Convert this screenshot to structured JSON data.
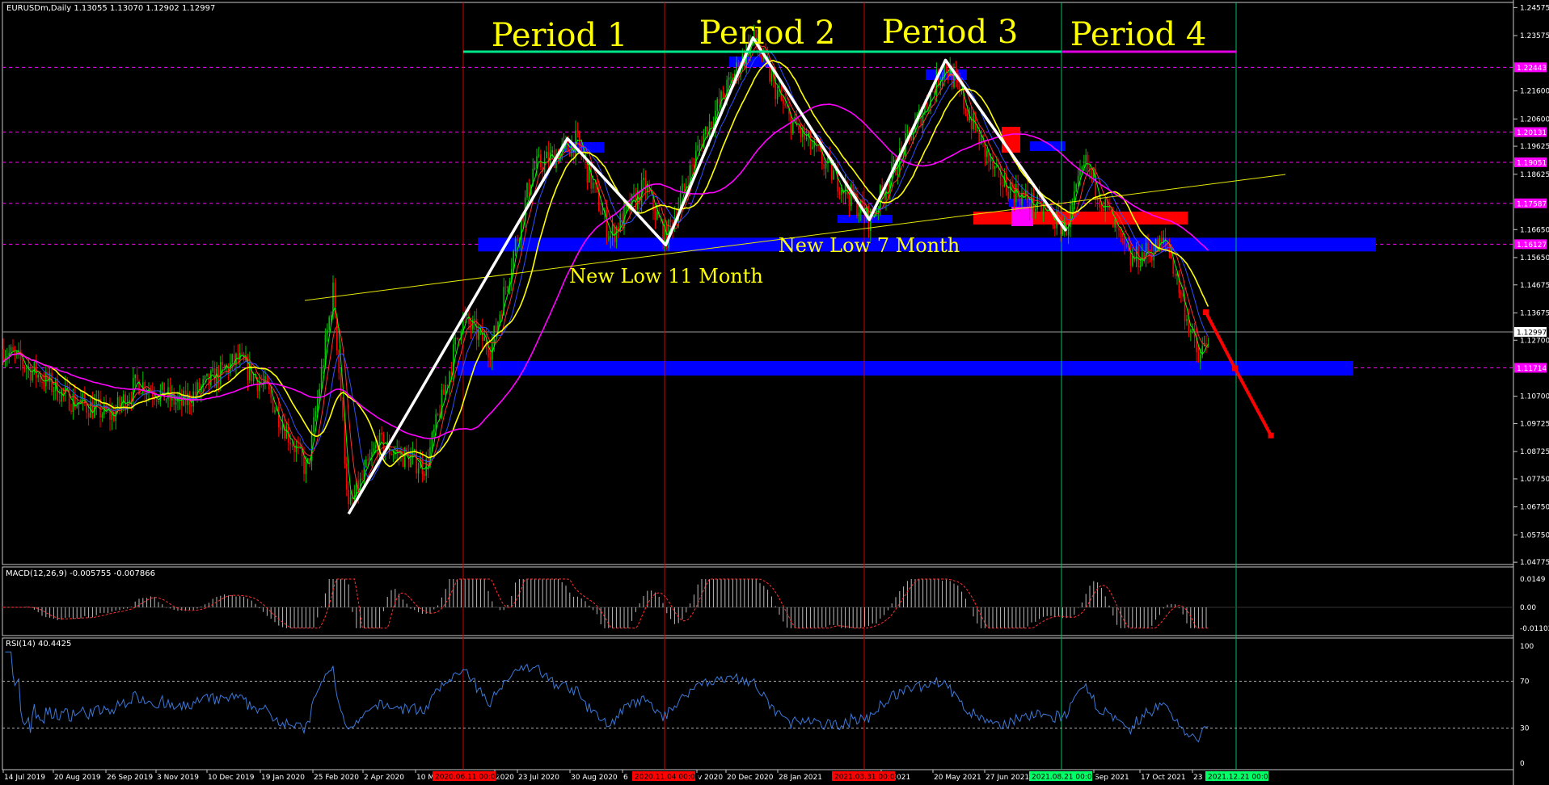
{
  "header": {
    "symbol_line": "EURUSDm,Daily  1.13055 1.13070 1.12902 1.12997",
    "macd_label": "MACD(12,26,9) -0.005755 -0.007866",
    "rsi_label": "RSI(14) 40.4425"
  },
  "annotations": {
    "periods": [
      "Period 1",
      "Period 2",
      "Period 3",
      "Period 4"
    ],
    "low_11": "New Low 11 Month",
    "low_7": "New Low 7 Month"
  },
  "axes": {
    "price_ticks": [
      "1.24575",
      "1.23575",
      "1.21600",
      "1.20600",
      "1.19625",
      "1.18625",
      "1.16650",
      "1.15650",
      "1.14675",
      "1.13675",
      "1.12700",
      "1.10700",
      "1.09725",
      "1.08725",
      "1.07750",
      "1.06750",
      "1.05750",
      "1.04775"
    ],
    "price_tags": [
      {
        "label": "1.22443",
        "kind": "magenta"
      },
      {
        "label": "1.20131",
        "kind": "magenta"
      },
      {
        "label": "1.19051",
        "kind": "magenta"
      },
      {
        "label": "1.17587",
        "kind": "magenta"
      },
      {
        "label": "1.16127",
        "kind": "magenta"
      },
      {
        "label": "1.12997",
        "kind": "white"
      },
      {
        "label": "1.11714",
        "kind": "magenta"
      }
    ],
    "macd_ticks": [
      "0.0149",
      "0.00",
      "-0.011028"
    ],
    "rsi_ticks": [
      "100",
      "70",
      "30",
      "0"
    ],
    "date_ticks": [
      "14 Jul 2019",
      "20 Aug 2019",
      "26 Sep 2019",
      "3 Nov 2019",
      "10 Dec 2019",
      "19 Jan 2020",
      "25 Feb 2020",
      "2 Apr 2020",
      "10 M",
      "2020",
      "23 Jul 2020",
      "30 Aug 2020",
      "6",
      "v 2020",
      "20 Dec 2020",
      "28 Jan 2021",
      "pr 2021",
      "20 May 2021",
      "27 Jun 2021",
      "Sep 2021",
      "17 Oct 2021",
      "23"
    ],
    "vline_tags": [
      {
        "label": "2020.06.11 00:00",
        "color": "#ff0000"
      },
      {
        "label": "2020.11.04 00:00",
        "color": "#ff0000"
      },
      {
        "label": "2021.03.31 00:00",
        "color": "#ff0000"
      },
      {
        "label": "2021.08.21 00:00",
        "color": "#00ff66"
      },
      {
        "label": "2021.12.21 00:00",
        "color": "#00ff66"
      }
    ]
  },
  "colors": {
    "background": "#000000",
    "bull_candle": "#00c000",
    "bear_candle": "#ff0000",
    "ma_fast": "#ffff00",
    "ma_slow": "#ff00ff",
    "zigzag": "#ffffff",
    "support_zone": "#0000ff",
    "resistance_zone": "#ff0000",
    "rsi_line": "#3c78d8",
    "projection": "#ff0000"
  },
  "chart_data": {
    "type": "candlestick",
    "symbol": "EURUSDm",
    "timeframe": "Daily",
    "ylim": [
      1.0475,
      1.2535
    ],
    "ohlc_last": {
      "open": 1.13055,
      "high": 1.1307,
      "low": 1.12902,
      "close": 1.12997
    },
    "price_path": [
      [
        "2019-07-14",
        1.124
      ],
      [
        "2019-09-01",
        1.106
      ],
      [
        "2019-10-01",
        1.1
      ],
      [
        "2019-10-20",
        1.112
      ],
      [
        "2019-11-20",
        1.104
      ],
      [
        "2019-12-31",
        1.12
      ],
      [
        "2020-01-20",
        1.11
      ],
      [
        "2020-02-19",
        1.08
      ],
      [
        "2020-03-09",
        1.145
      ],
      [
        "2020-03-20",
        1.066
      ],
      [
        "2020-04-10",
        1.09
      ],
      [
        "2020-05-15",
        1.082
      ],
      [
        "2020-06-10",
        1.135
      ],
      [
        "2020-07-01",
        1.124
      ],
      [
        "2020-07-31",
        1.188
      ],
      [
        "2020-09-01",
        1.198
      ],
      [
        "2020-09-25",
        1.164
      ],
      [
        "2020-10-20",
        1.182
      ],
      [
        "2020-11-04",
        1.163
      ],
      [
        "2020-12-01",
        1.2
      ],
      [
        "2021-01-06",
        1.235
      ],
      [
        "2021-02-01",
        1.206
      ],
      [
        "2021-03-31",
        1.17
      ],
      [
        "2021-05-25",
        1.226
      ],
      [
        "2021-07-01",
        1.185
      ],
      [
        "2021-08-20",
        1.167
      ],
      [
        "2021-09-03",
        1.19
      ],
      [
        "2021-10-05",
        1.155
      ],
      [
        "2021-11-01",
        1.162
      ],
      [
        "2021-11-24",
        1.119
      ],
      [
        "2021-12-01",
        1.13
      ]
    ],
    "zigzag": [
      [
        "2020-03-20",
        1.065
      ],
      [
        "2020-08-25",
        1.199
      ],
      [
        "2020-11-04",
        1.161
      ],
      [
        "2021-01-06",
        1.235
      ],
      [
        "2021-03-31",
        1.17
      ],
      [
        "2021-05-25",
        1.227
      ],
      [
        "2021-08-20",
        1.166
      ]
    ],
    "resistance_marks": [
      1.201,
      1.235,
      1.227
    ],
    "support_zones": [
      {
        "price": 1.161,
        "label": "New Low 11 Month"
      },
      {
        "price": 1.117
      }
    ],
    "horizontal_levels": [
      1.22443,
      1.20131,
      1.19051,
      1.17587,
      1.16127,
      1.11714,
      1.12997
    ],
    "projection": [
      [
        "2021-11-29",
        1.137
      ],
      [
        "2021-12-20",
        1.117
      ],
      [
        "2022-01-15",
        1.093
      ]
    ],
    "period_boundaries": [
      "2020-06-11",
      "2020-11-04",
      "2021-03-31",
      "2021-08-21",
      "2021-12-21"
    ],
    "macd": {
      "value": -0.005755,
      "signal": -0.007866,
      "ylim": [
        -0.011028,
        0.0149
      ]
    },
    "rsi": {
      "value": 40.4425,
      "levels": [
        70,
        30
      ],
      "ylim": [
        0,
        100
      ]
    }
  }
}
